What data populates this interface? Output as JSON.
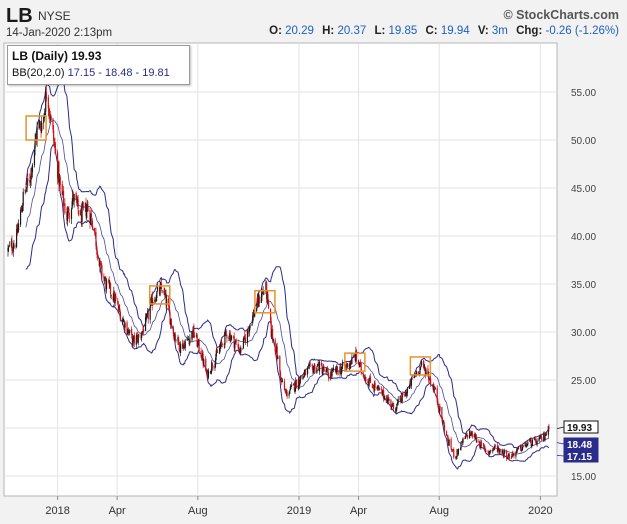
{
  "header": {
    "symbol": "LB",
    "exchange": "NYSE",
    "timestamp": "14-Jan-2020 2:13pm",
    "brand": "© StockCharts.com",
    "ohlc": [
      {
        "label": "O:",
        "value": "20.29"
      },
      {
        "label": "H:",
        "value": "20.37"
      },
      {
        "label": "L:",
        "value": "19.85"
      },
      {
        "label": "C:",
        "value": "19.94"
      },
      {
        "label": "V:",
        "value": "3m"
      }
    ],
    "change_label": "Chg:",
    "change_value": "-0.26 (-1.26%)"
  },
  "legend": {
    "title": "LB (Daily) 19.93",
    "bb_label": "BB(20,2.0)",
    "bb_values": "17.15 - 18.48 - 19.81"
  },
  "colors": {
    "up_candle": "#1a1a1a",
    "down_candle": "#d01010",
    "band": "#2b2b8c",
    "highlight_box": "#e8922a",
    "last_price_label": "#111111",
    "band_label": "#2b2b8c"
  },
  "chart_data": {
    "type": "candlestick",
    "title": "LB (Daily) 19.93",
    "ylim": [
      13.5,
      60
    ],
    "y_ticks": [
      "15.00",
      "20.00",
      "25.00",
      "30.00",
      "35.00",
      "40.00",
      "45.00",
      "50.00",
      "55.00"
    ],
    "x_ticks": [
      "2018",
      "Apr",
      "Aug",
      "2019",
      "Apr",
      "Aug",
      "2020"
    ],
    "x_tick_dates": [
      "2018-01-01",
      "2018-04-01",
      "2018-08-01",
      "2019-01-01",
      "2019-04-01",
      "2019-08-01",
      "2020-01-01"
    ],
    "x_range": [
      "2017-10-18",
      "2020-01-14"
    ],
    "price_path": [
      [
        "2017-10-18",
        38.5
      ],
      [
        "2017-10-30",
        39.5
      ],
      [
        "2017-11-10",
        44
      ],
      [
        "2017-11-20",
        46
      ],
      [
        "2017-12-01",
        51
      ],
      [
        "2017-12-10",
        52
      ],
      [
        "2017-12-16",
        55.5
      ],
      [
        "2017-12-20",
        53
      ],
      [
        "2017-12-28",
        49
      ],
      [
        "2018-01-05",
        45
      ],
      [
        "2018-01-15",
        42
      ],
      [
        "2018-01-25",
        44
      ],
      [
        "2018-02-05",
        42
      ],
      [
        "2018-02-15",
        43
      ],
      [
        "2018-02-25",
        41
      ],
      [
        "2018-03-05",
        37
      ],
      [
        "2018-03-15",
        35
      ],
      [
        "2018-03-25",
        34
      ],
      [
        "2018-04-05",
        32
      ],
      [
        "2018-04-15",
        30.5
      ],
      [
        "2018-04-25",
        29
      ],
      [
        "2018-05-05",
        29.5
      ],
      [
        "2018-05-15",
        31
      ],
      [
        "2018-05-25",
        33.5
      ],
      [
        "2018-06-01",
        34
      ],
      [
        "2018-06-08",
        34.5
      ],
      [
        "2018-06-15",
        33
      ],
      [
        "2018-06-25",
        30
      ],
      [
        "2018-07-05",
        28.5
      ],
      [
        "2018-07-15",
        29
      ],
      [
        "2018-07-25",
        30
      ],
      [
        "2018-08-05",
        28
      ],
      [
        "2018-08-15",
        25.5
      ],
      [
        "2018-08-25",
        27
      ],
      [
        "2018-09-05",
        28.5
      ],
      [
        "2018-09-15",
        30
      ],
      [
        "2018-09-25",
        29
      ],
      [
        "2018-10-05",
        28
      ],
      [
        "2018-10-15",
        30
      ],
      [
        "2018-10-25",
        32
      ],
      [
        "2018-11-05",
        34
      ],
      [
        "2018-11-12",
        34.5
      ],
      [
        "2018-11-20",
        30
      ],
      [
        "2018-11-28",
        28
      ],
      [
        "2018-12-05",
        25
      ],
      [
        "2018-12-12",
        23.5
      ],
      [
        "2018-12-20",
        24
      ],
      [
        "2019-01-01",
        25
      ],
      [
        "2019-01-15",
        26
      ],
      [
        "2019-01-30",
        26.5
      ],
      [
        "2019-02-15",
        25.5
      ],
      [
        "2019-02-28",
        26
      ],
      [
        "2019-03-15",
        26.5
      ],
      [
        "2019-03-28",
        27.5
      ],
      [
        "2019-04-05",
        26
      ],
      [
        "2019-04-15",
        25
      ],
      [
        "2019-04-30",
        24
      ],
      [
        "2019-05-15",
        23
      ],
      [
        "2019-05-25",
        22
      ],
      [
        "2019-06-05",
        23
      ],
      [
        "2019-06-15",
        24
      ],
      [
        "2019-06-25",
        25.5
      ],
      [
        "2019-07-05",
        26.5
      ],
      [
        "2019-07-12",
        26
      ],
      [
        "2019-07-25",
        24
      ],
      [
        "2019-08-05",
        21
      ],
      [
        "2019-08-15",
        18.5
      ],
      [
        "2019-08-25",
        17
      ],
      [
        "2019-09-05",
        18.5
      ],
      [
        "2019-09-15",
        19.5
      ],
      [
        "2019-09-25",
        19
      ],
      [
        "2019-10-05",
        18
      ],
      [
        "2019-10-15",
        17.5
      ],
      [
        "2019-10-25",
        18
      ],
      [
        "2019-11-05",
        17.5
      ],
      [
        "2019-11-15",
        17
      ],
      [
        "2019-11-25",
        17.5
      ],
      [
        "2019-12-05",
        18
      ],
      [
        "2019-12-15",
        18.5
      ],
      [
        "2019-12-25",
        18.5
      ],
      [
        "2020-01-05",
        19
      ],
      [
        "2020-01-14",
        19.9
      ]
    ],
    "bollinger": {
      "period": 20,
      "std_dev": 2.0,
      "upper": 19.81,
      "middle": 18.48,
      "lower": 17.15
    },
    "last_price": 19.93,
    "price_labels": [
      {
        "text": "19.93",
        "value": 19.93
      },
      {
        "text": "18.48",
        "value": 18.48
      },
      {
        "text": "17.15",
        "value": 17.15
      }
    ],
    "highlight_boxes": [
      {
        "date": "2017-12-01",
        "low": 50,
        "high": 52.5
      },
      {
        "date": "2018-06-06",
        "low": 33,
        "high": 34.8
      },
      {
        "date": "2018-11-12",
        "low": 32,
        "high": 34.3
      },
      {
        "date": "2019-03-28",
        "low": 26,
        "high": 27.8
      },
      {
        "date": "2019-07-05",
        "low": 25.6,
        "high": 27.4
      }
    ]
  }
}
